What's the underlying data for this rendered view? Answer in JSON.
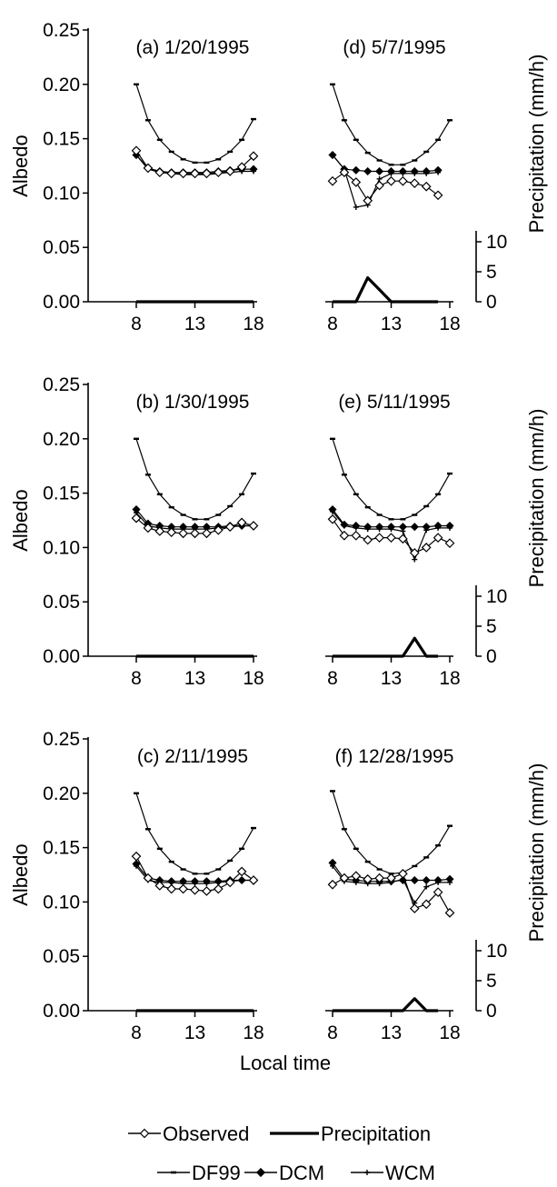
{
  "chart_data": {
    "type": "line",
    "x_axis": {
      "label": "Local time",
      "ticks": [
        8,
        13,
        18
      ]
    },
    "y_axis_left": {
      "label": "Albedo",
      "ticks": [
        "0.00",
        "0.05",
        "0.10",
        "0.15",
        "0.20",
        "0.25"
      ],
      "range": [
        0,
        0.25
      ]
    },
    "y_axis_right": {
      "label": "Precipitation (mm/h)",
      "ticks": [
        "0",
        "5",
        "10"
      ],
      "range": [
        0,
        10
      ]
    },
    "legend": [
      {
        "name": "Observed",
        "marker": "open-diamond"
      },
      {
        "name": "Precipitation",
        "marker": "thick-line"
      },
      {
        "name": "DF99",
        "marker": "dash"
      },
      {
        "name": "DCM",
        "marker": "filled-diamond"
      },
      {
        "name": "WCM",
        "marker": "small-cross"
      }
    ],
    "panels": [
      {
        "label": "(a) 1/20/1995",
        "hours": [
          8,
          9,
          10,
          11,
          12,
          13,
          14,
          15,
          16,
          17,
          18
        ],
        "observed": [
          0.139,
          0.123,
          0.119,
          0.118,
          0.118,
          0.118,
          0.118,
          0.119,
          0.12,
          0.124,
          0.134
        ],
        "df99": [
          0.2,
          0.167,
          0.149,
          0.138,
          0.131,
          0.128,
          0.128,
          0.131,
          0.138,
          0.149,
          0.168
        ],
        "dcm": [
          0.135,
          0.123,
          0.12,
          0.119,
          0.119,
          0.119,
          0.119,
          0.12,
          0.121,
          0.122,
          0.122
        ],
        "wcm": [
          0.135,
          0.122,
          0.119,
          0.118,
          0.117,
          0.117,
          0.117,
          0.118,
          0.119,
          0.12,
          0.12
        ],
        "precip": [
          0,
          0,
          0,
          0,
          0,
          0,
          0,
          0,
          0,
          0,
          0
        ]
      },
      {
        "label": "(d) 5/7/1995",
        "hours": [
          8,
          9,
          10,
          11,
          12,
          13,
          14,
          15,
          16,
          17,
          18
        ],
        "observed": [
          0.111,
          0.119,
          0.11,
          0.093,
          0.107,
          0.111,
          0.111,
          0.109,
          0.106,
          0.098,
          null
        ],
        "df99": [
          0.2,
          0.167,
          0.149,
          0.137,
          0.13,
          0.126,
          0.126,
          0.13,
          0.138,
          0.149,
          0.167
        ],
        "dcm": [
          0.135,
          0.122,
          0.121,
          0.12,
          0.12,
          0.12,
          0.12,
          0.12,
          0.12,
          0.121,
          null
        ],
        "wcm": [
          0.135,
          0.122,
          0.087,
          0.089,
          0.113,
          0.118,
          0.118,
          0.118,
          0.118,
          0.119,
          null
        ],
        "precip": [
          0,
          0,
          0,
          4,
          2,
          0,
          0,
          0,
          0,
          0,
          null
        ]
      },
      {
        "label": "(b) 1/30/1995",
        "hours": [
          8,
          9,
          10,
          11,
          12,
          13,
          14,
          15,
          16,
          17,
          18
        ],
        "observed": [
          0.127,
          0.118,
          0.115,
          0.114,
          0.113,
          0.113,
          0.113,
          0.116,
          0.119,
          0.123,
          0.12
        ],
        "df99": [
          0.2,
          0.167,
          0.149,
          0.137,
          0.13,
          0.126,
          0.126,
          0.13,
          0.138,
          0.149,
          0.168
        ],
        "dcm": [
          0.135,
          0.122,
          0.12,
          0.119,
          0.119,
          0.119,
          0.119,
          0.119,
          0.12,
          0.12,
          0.12
        ],
        "wcm": [
          0.132,
          0.12,
          0.118,
          0.117,
          0.117,
          0.117,
          0.117,
          0.118,
          0.119,
          0.12,
          0.12
        ],
        "precip": [
          0,
          0,
          0,
          0,
          0,
          0,
          0,
          0,
          0,
          0,
          0
        ]
      },
      {
        "label": "(e) 5/11/1995",
        "hours": [
          8,
          9,
          10,
          11,
          12,
          13,
          14,
          15,
          16,
          17,
          18
        ],
        "observed": [
          0.126,
          0.111,
          0.111,
          0.107,
          0.109,
          0.109,
          0.108,
          0.095,
          0.1,
          0.109,
          0.104
        ],
        "df99": [
          0.2,
          0.167,
          0.149,
          0.137,
          0.13,
          0.126,
          0.126,
          0.13,
          0.138,
          0.149,
          0.168
        ],
        "dcm": [
          0.135,
          0.121,
          0.12,
          0.119,
          0.119,
          0.119,
          0.119,
          0.119,
          0.119,
          0.12,
          0.12
        ],
        "wcm": [
          0.133,
          0.12,
          0.118,
          0.117,
          0.117,
          0.117,
          0.115,
          0.089,
          0.116,
          0.118,
          0.118
        ],
        "precip": [
          0,
          0,
          0,
          0,
          0,
          0,
          0,
          3,
          0,
          0,
          null
        ]
      },
      {
        "label": "(c) 2/11/1995",
        "hours": [
          8,
          9,
          10,
          11,
          12,
          13,
          14,
          15,
          16,
          17,
          18
        ],
        "observed": [
          0.142,
          0.122,
          0.115,
          0.112,
          0.112,
          0.111,
          0.11,
          0.112,
          0.118,
          0.128,
          0.12
        ],
        "df99": [
          0.2,
          0.167,
          0.149,
          0.137,
          0.13,
          0.126,
          0.126,
          0.13,
          0.138,
          0.149,
          0.168
        ],
        "dcm": [
          0.135,
          0.122,
          0.12,
          0.119,
          0.119,
          0.119,
          0.119,
          0.119,
          0.12,
          0.12,
          0.12
        ],
        "wcm": [
          0.133,
          0.12,
          0.118,
          0.118,
          0.117,
          0.117,
          0.117,
          0.118,
          0.119,
          0.12,
          0.12
        ],
        "precip": [
          0,
          0,
          0,
          0,
          0,
          0,
          0,
          0,
          0,
          0,
          0
        ]
      },
      {
        "label": "(f) 12/28/1995",
        "hours": [
          8,
          9,
          10,
          11,
          12,
          13,
          14,
          15,
          16,
          17,
          18
        ],
        "observed": [
          0.116,
          0.122,
          0.124,
          0.121,
          0.122,
          0.122,
          0.126,
          0.094,
          0.098,
          0.109,
          0.09
        ],
        "df99": [
          0.202,
          0.167,
          0.149,
          0.137,
          0.13,
          0.126,
          0.127,
          0.133,
          0.141,
          0.152,
          0.17
        ],
        "dcm": [
          0.136,
          0.121,
          0.12,
          0.119,
          0.119,
          0.119,
          0.12,
          0.12,
          0.12,
          0.12,
          0.121
        ],
        "wcm": [
          0.133,
          0.119,
          0.118,
          0.117,
          0.117,
          0.118,
          0.121,
          0.099,
          0.114,
          0.118,
          0.118
        ],
        "precip": [
          0,
          0,
          0,
          0,
          0,
          0,
          0,
          2,
          0,
          0,
          null
        ]
      }
    ]
  }
}
